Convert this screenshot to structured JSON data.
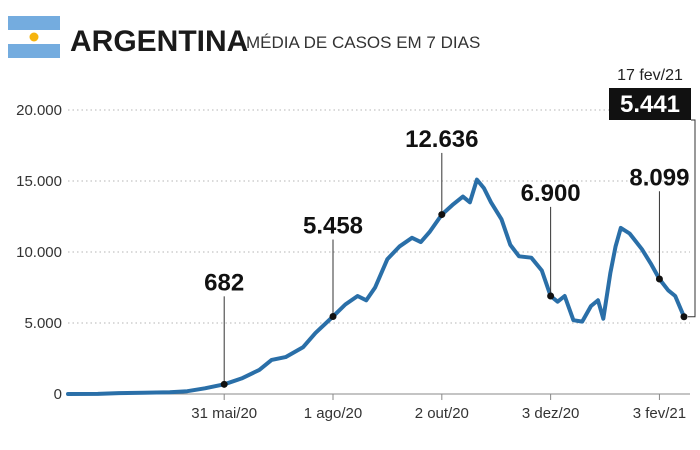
{
  "header": {
    "country": "ARGENTINA",
    "subtitle": "MÉDIA DE CASOS EM 7 DIAS",
    "flag_colors": {
      "blue": "#74acdf",
      "white": "#ffffff",
      "sun": "#f6b40e"
    }
  },
  "colors": {
    "line": "#2a6fa8",
    "grid": "#b5b5b5",
    "axis": "#888888",
    "marker": "#111111"
  },
  "chart_data": {
    "type": "line",
    "title": "MÉDIA DE CASOS EM 7 DIAS",
    "xlabel": "",
    "ylabel": "",
    "ylim": [
      0,
      20000
    ],
    "yticks": [
      0,
      5000,
      10000,
      15000,
      20000
    ],
    "ytick_labels": [
      "0",
      "5.000",
      "10.000",
      "15.000",
      "20.000"
    ],
    "x_range": [
      "2020-03-03",
      "2021-02-17"
    ],
    "xticks": [
      {
        "date": "2020-05-31",
        "label": "31 mai/20"
      },
      {
        "date": "2020-08-01",
        "label": "1 ago/20"
      },
      {
        "date": "2020-10-02",
        "label": "2 out/20"
      },
      {
        "date": "2020-12-03",
        "label": "3 dez/20"
      },
      {
        "date": "2021-02-03",
        "label": "3 fev/21"
      }
    ],
    "grid": true,
    "series": [
      {
        "name": "",
        "points": [
          [
            "2020-03-03",
            0
          ],
          [
            "2020-03-20",
            10
          ],
          [
            "2020-04-01",
            60
          ],
          [
            "2020-04-15",
            90
          ],
          [
            "2020-04-30",
            120
          ],
          [
            "2020-05-10",
            200
          ],
          [
            "2020-05-20",
            400
          ],
          [
            "2020-05-31",
            682
          ],
          [
            "2020-06-10",
            1100
          ],
          [
            "2020-06-20",
            1700
          ],
          [
            "2020-06-27",
            2400
          ],
          [
            "2020-07-05",
            2600
          ],
          [
            "2020-07-15",
            3300
          ],
          [
            "2020-07-22",
            4300
          ],
          [
            "2020-08-01",
            5458
          ],
          [
            "2020-08-08",
            6300
          ],
          [
            "2020-08-15",
            6900
          ],
          [
            "2020-08-20",
            6600
          ],
          [
            "2020-08-25",
            7500
          ],
          [
            "2020-09-01",
            9500
          ],
          [
            "2020-09-08",
            10400
          ],
          [
            "2020-09-15",
            11000
          ],
          [
            "2020-09-20",
            10700
          ],
          [
            "2020-09-25",
            11400
          ],
          [
            "2020-10-02",
            12636
          ],
          [
            "2020-10-08",
            13300
          ],
          [
            "2020-10-14",
            13900
          ],
          [
            "2020-10-18",
            13500
          ],
          [
            "2020-10-22",
            15100
          ],
          [
            "2020-10-26",
            14500
          ],
          [
            "2020-10-30",
            13500
          ],
          [
            "2020-11-05",
            12300
          ],
          [
            "2020-11-10",
            10500
          ],
          [
            "2020-11-15",
            9700
          ],
          [
            "2020-11-22",
            9600
          ],
          [
            "2020-11-28",
            8700
          ],
          [
            "2020-12-03",
            6900
          ],
          [
            "2020-12-07",
            6500
          ],
          [
            "2020-12-11",
            6900
          ],
          [
            "2020-12-16",
            5200
          ],
          [
            "2020-12-21",
            5100
          ],
          [
            "2020-12-26",
            6200
          ],
          [
            "2020-12-30",
            6600
          ],
          [
            "2021-01-02",
            5300
          ],
          [
            "2021-01-06",
            8500
          ],
          [
            "2021-01-09",
            10400
          ],
          [
            "2021-01-12",
            11700
          ],
          [
            "2021-01-17",
            11300
          ],
          [
            "2021-01-24",
            10200
          ],
          [
            "2021-01-29",
            9200
          ],
          [
            "2021-02-03",
            8099
          ],
          [
            "2021-02-08",
            7300
          ],
          [
            "2021-02-12",
            6900
          ],
          [
            "2021-02-17",
            5441
          ]
        ]
      }
    ],
    "annotations": [
      {
        "date": "2020-05-31",
        "value": 682,
        "label": "682",
        "label_value": 7300
      },
      {
        "date": "2020-08-01",
        "value": 5458,
        "label": "5.458",
        "label_value": 11300
      },
      {
        "date": "2020-10-02",
        "value": 12636,
        "label": "12.636",
        "label_value": 17400
      },
      {
        "date": "2020-12-03",
        "value": 6900,
        "label": "6.900",
        "label_value": 13600
      },
      {
        "date": "2021-02-03",
        "value": 8099,
        "label": "8.099",
        "label_value": 14700
      }
    ],
    "latest": {
      "date": "2021-02-17",
      "date_label": "17 fev/21",
      "value": 5441,
      "label": "5.441"
    }
  }
}
